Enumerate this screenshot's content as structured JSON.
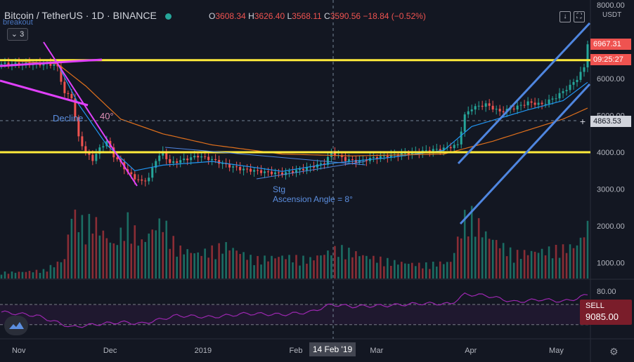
{
  "header": {
    "symbol": "Bitcoin / TetherUS",
    "interval": "1D",
    "exchange": "BINANCE",
    "separator": "·",
    "open_label": "O",
    "open": "3608.34",
    "high_label": "H",
    "high": "3626.40",
    "low_label": "L",
    "low": "3568.11",
    "close_label": "C",
    "close": "3590.56",
    "change": "−18.84 (−0.52%)",
    "sub_label": "breakout",
    "indicator_count": "3",
    "status_color": "#26a69a"
  },
  "price_axis": {
    "currency": "USDT",
    "ticks": [
      "8000.00",
      "7000.00",
      "6000.00",
      "5000.00",
      "4000.00",
      "3000.00",
      "2000.00",
      "1000.00"
    ],
    "last_price_tag": "6967.31",
    "countdown_tag": "09:25:27",
    "crosshair_price_tag": "4863.53",
    "last_price_color": "#ef5350"
  },
  "rsi_axis": {
    "tick": "80.00"
  },
  "time_axis": {
    "labels": [
      "Nov",
      "Dec",
      "2019",
      "Feb",
      "Mar",
      "Apr",
      "May"
    ],
    "crosshair_label": "14 Feb '19"
  },
  "annotations": {
    "decline": "Decline",
    "decline_angle": "40°",
    "stg": "Stg",
    "ascension": "Ascension Angle = 8°"
  },
  "sell_button": {
    "label": "SELL",
    "price": "9085.00"
  },
  "buttons": {
    "down_arrow": "↓",
    "fullscreen": "⛶",
    "crosshair": "+"
  },
  "colors": {
    "bg": "#131722",
    "up": "#26a69a",
    "down": "#ef5350",
    "yellow": "#ffeb3b",
    "magenta": "#e040fb",
    "blue_line": "#4f86e0",
    "ma_fast": "#2196f3",
    "ma_slow": "#e0701c",
    "rsi": "#9c27b0"
  },
  "chart_data": {
    "type": "candlestick",
    "price_min": 0,
    "price_max": 8200,
    "horizontal_levels": [
      8200,
      6500,
      4000
    ],
    "candles_close_path": [
      [
        0,
        6400
      ],
      [
        8,
        6400
      ],
      [
        15,
        6380
      ],
      [
        16,
        6300
      ],
      [
        18,
        5600
      ],
      [
        20,
        5500
      ],
      [
        22,
        4400
      ],
      [
        24,
        4000
      ],
      [
        26,
        3800
      ],
      [
        28,
        4100
      ],
      [
        30,
        4300
      ],
      [
        32,
        3900
      ],
      [
        34,
        3700
      ],
      [
        36,
        3450
      ],
      [
        38,
        3300
      ],
      [
        40,
        3200
      ],
      [
        42,
        3300
      ],
      [
        44,
        3800
      ],
      [
        46,
        4000
      ],
      [
        48,
        3700
      ],
      [
        52,
        3800
      ],
      [
        56,
        3900
      ],
      [
        60,
        3800
      ],
      [
        64,
        3650
      ],
      [
        68,
        3550
      ],
      [
        72,
        3500
      ],
      [
        76,
        3450
      ],
      [
        80,
        3420
      ],
      [
        84,
        3500
      ],
      [
        88,
        3600
      ],
      [
        92,
        3700
      ],
      [
        94,
        4000
      ],
      [
        98,
        3800
      ],
      [
        102,
        3750
      ],
      [
        106,
        3850
      ],
      [
        110,
        3900
      ],
      [
        114,
        3950
      ],
      [
        118,
        4000
      ],
      [
        122,
        4050
      ],
      [
        126,
        4100
      ],
      [
        130,
        4200
      ],
      [
        132,
        5000
      ],
      [
        134,
        5200
      ],
      [
        138,
        5300
      ],
      [
        142,
        5100
      ],
      [
        146,
        5200
      ],
      [
        150,
        5350
      ],
      [
        154,
        5300
      ],
      [
        158,
        5500
      ],
      [
        162,
        5800
      ],
      [
        164,
        6000
      ],
      [
        166,
        6300
      ],
      [
        167,
        6967
      ]
    ],
    "ma_fast": [
      [
        0,
        6500
      ],
      [
        16,
        6400
      ],
      [
        22,
        5300
      ],
      [
        30,
        4200
      ],
      [
        38,
        3500
      ],
      [
        46,
        3650
      ],
      [
        60,
        3750
      ],
      [
        80,
        3480
      ],
      [
        94,
        3700
      ],
      [
        110,
        3850
      ],
      [
        126,
        4050
      ],
      [
        134,
        4700
      ],
      [
        150,
        5150
      ],
      [
        160,
        5400
      ],
      [
        167,
        5900
      ]
    ],
    "ma_slow": [
      [
        0,
        6500
      ],
      [
        16,
        6400
      ],
      [
        24,
        5800
      ],
      [
        34,
        4900
      ],
      [
        46,
        4500
      ],
      [
        60,
        4200
      ],
      [
        80,
        3950
      ],
      [
        100,
        3900
      ],
      [
        126,
        3950
      ],
      [
        140,
        4300
      ],
      [
        160,
        4900
      ],
      [
        167,
        5200
      ]
    ],
    "volume": [
      [
        0,
        220
      ],
      [
        6,
        240
      ],
      [
        12,
        300
      ],
      [
        18,
        700
      ],
      [
        20,
        2400
      ],
      [
        24,
        1900
      ],
      [
        26,
        2200
      ],
      [
        28,
        1800
      ],
      [
        32,
        1200
      ],
      [
        36,
        2100
      ],
      [
        40,
        1300
      ],
      [
        44,
        1900
      ],
      [
        46,
        2100
      ],
      [
        50,
        1100
      ],
      [
        56,
        900
      ],
      [
        64,
        1200
      ],
      [
        72,
        700
      ],
      [
        80,
        800
      ],
      [
        88,
        700
      ],
      [
        96,
        1100
      ],
      [
        104,
        800
      ],
      [
        112,
        600
      ],
      [
        120,
        500
      ],
      [
        128,
        600
      ],
      [
        132,
        2200
      ],
      [
        134,
        2300
      ],
      [
        138,
        1600
      ],
      [
        146,
        900
      ],
      [
        154,
        1000
      ],
      [
        160,
        1100
      ],
      [
        164,
        1200
      ],
      [
        167,
        1900
      ]
    ],
    "rsi": [
      [
        0,
        55
      ],
      [
        10,
        48
      ],
      [
        20,
        25
      ],
      [
        26,
        30
      ],
      [
        34,
        35
      ],
      [
        40,
        32
      ],
      [
        50,
        48
      ],
      [
        60,
        45
      ],
      [
        70,
        52
      ],
      [
        80,
        50
      ],
      [
        88,
        55
      ],
      [
        94,
        70
      ],
      [
        100,
        66
      ],
      [
        110,
        68
      ],
      [
        120,
        72
      ],
      [
        128,
        71
      ],
      [
        132,
        90
      ],
      [
        138,
        88
      ],
      [
        146,
        75
      ],
      [
        154,
        80
      ],
      [
        160,
        76
      ],
      [
        164,
        82
      ],
      [
        167,
        90
      ]
    ]
  }
}
